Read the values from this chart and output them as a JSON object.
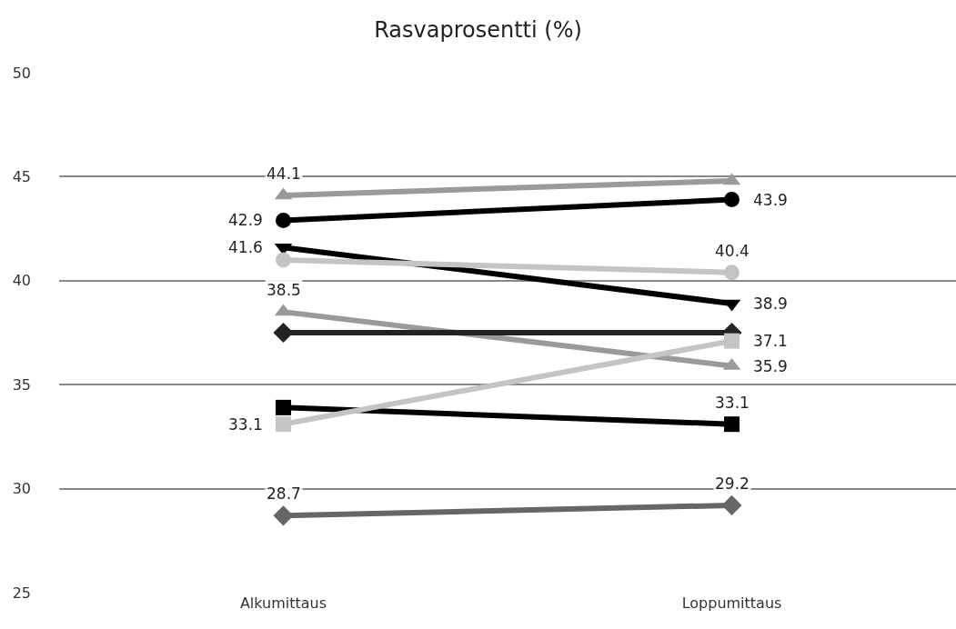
{
  "chart_data": {
    "type": "line",
    "title": "Rasvaprosentti (%)",
    "categories": [
      "Alkumittaus",
      "Loppumittaus"
    ],
    "ylim": [
      25,
      50
    ],
    "yticks": [
      25,
      30,
      35,
      40,
      45,
      50
    ],
    "grid": "y",
    "legend": false,
    "line_style": "solid",
    "series": [
      {
        "color": "#9a9a9a",
        "marker": "triangle",
        "values": [
          44.1,
          44.8
        ],
        "value_labels": [
          "44.1",
          null
        ]
      },
      {
        "color": "#000000",
        "marker": "circle",
        "values": [
          42.9,
          43.9
        ],
        "value_labels": [
          "42.9",
          "43.9"
        ]
      },
      {
        "color": "#000000",
        "marker": "triangle-down",
        "values": [
          41.6,
          38.9
        ],
        "value_labels": [
          "41.6",
          "38.9"
        ]
      },
      {
        "color": "#c4c4c4",
        "marker": "circle",
        "values": [
          41.0,
          40.4
        ],
        "value_labels": [
          null,
          "40.4"
        ]
      },
      {
        "color": "#9a9a9a",
        "marker": "triangle",
        "values": [
          38.5,
          35.9
        ],
        "value_labels": [
          "38.5",
          "35.9"
        ]
      },
      {
        "color": "#222222",
        "marker": "diamond",
        "values": [
          37.5,
          37.5
        ],
        "value_labels": [
          null,
          null
        ]
      },
      {
        "color": "#000000",
        "marker": "square",
        "values": [
          33.9,
          33.1
        ],
        "value_labels": [
          null,
          "33.1"
        ]
      },
      {
        "color": "#c4c4c4",
        "marker": "square",
        "values": [
          33.1,
          37.1
        ],
        "value_labels": [
          "33.1",
          "37.1"
        ]
      },
      {
        "color": "#666666",
        "marker": "diamond",
        "values": [
          28.7,
          29.2
        ],
        "value_labels": [
          "28.7",
          "29.2"
        ]
      }
    ]
  }
}
